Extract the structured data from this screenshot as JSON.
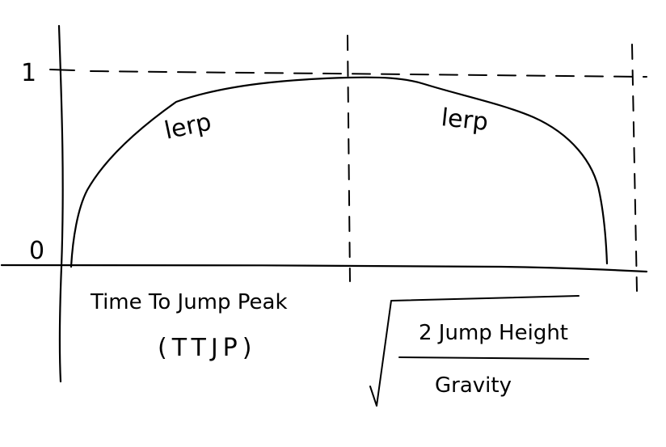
{
  "diagram": {
    "y_tick_top": "1",
    "y_tick_bottom": "0",
    "segment_left_label": "lerp",
    "segment_right_label": "lerp",
    "x_label_line1": "Time To Jump Peak",
    "x_label_line2": "(TTJP)",
    "formula_numerator": "2 Jump Height",
    "formula_denominator": "Gravity",
    "ink_color": "#000000",
    "background_color": "#ffffff"
  }
}
